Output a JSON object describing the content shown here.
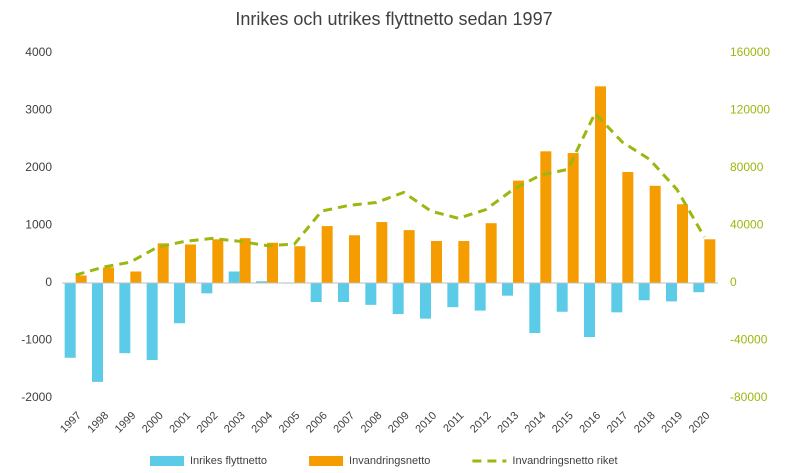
{
  "chart_data": {
    "type": "bar",
    "title": "Inrikes och utrikes flyttnetto sedan 1997",
    "categories": [
      "1997",
      "1998",
      "1999",
      "2000",
      "2001",
      "2002",
      "2003",
      "2004",
      "2005",
      "2006",
      "2007",
      "2008",
      "2009",
      "2010",
      "2011",
      "2012",
      "2013",
      "2014",
      "2015",
      "2016",
      "2017",
      "2018",
      "2019",
      "2020"
    ],
    "series": [
      {
        "name": "Inrikes flyttnetto",
        "type": "bar",
        "color": "#5bcbe8",
        "values": [
          -1300,
          -1720,
          -1220,
          -1340,
          -700,
          -180,
          200,
          30,
          -10,
          -330,
          -330,
          -380,
          -540,
          -620,
          -420,
          -480,
          -220,
          -870,
          -500,
          -940,
          -510,
          -300,
          -320,
          -160
        ]
      },
      {
        "name": "Invandringsnetto",
        "type": "bar",
        "color": "#f59d00",
        "values": [
          130,
          270,
          200,
          690,
          670,
          760,
          780,
          700,
          640,
          990,
          830,
          1060,
          920,
          730,
          730,
          1040,
          1780,
          2290,
          2260,
          3420,
          1930,
          1690,
          1370,
          760
        ]
      },
      {
        "name": "Invandringsnetto riket",
        "type": "line",
        "axis": "y2",
        "color": "#9ab80f",
        "values": [
          5500,
          11000,
          14500,
          25000,
          29000,
          31000,
          29000,
          26000,
          27000,
          50000,
          54000,
          56000,
          63000,
          50000,
          45000,
          51000,
          65000,
          75000,
          79000,
          118000,
          98000,
          86000,
          65000,
          32000
        ]
      }
    ],
    "ylim": [
      -2000,
      4000
    ],
    "yticks": [
      -2000,
      -1000,
      0,
      1000,
      2000,
      3000,
      4000
    ],
    "y2lim": [
      -80000,
      160000
    ],
    "y2ticks": [
      -80000,
      -40000,
      0,
      40000,
      80000,
      120000,
      160000
    ],
    "y2color": "#9ab80f",
    "legend": "bottom"
  }
}
